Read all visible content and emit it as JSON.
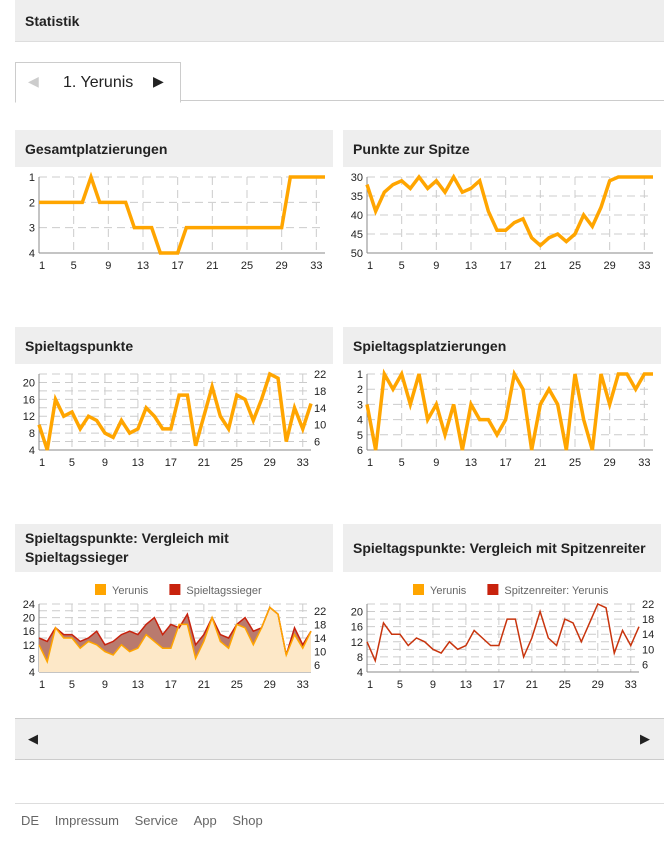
{
  "header": {
    "title": "Statistik"
  },
  "tab": {
    "label": "1. Yerunis",
    "prev": "◀",
    "next": "▶"
  },
  "pager": {
    "prev": "◀",
    "next": "▶"
  },
  "footer": {
    "links": [
      "DE",
      "Impressum",
      "Service",
      "App",
      "Shop"
    ]
  },
  "colors": {
    "orange": "#ffa500",
    "red": "#c8220d"
  },
  "chart_data": [
    {
      "id": "c1",
      "type": "line",
      "title": "Gesamtplatzierungen",
      "ylim": [
        1,
        4
      ],
      "yticks": [
        1,
        2,
        3,
        4
      ],
      "inverted": true,
      "xticks": [
        1,
        5,
        9,
        13,
        17,
        21,
        25,
        29,
        33
      ],
      "series": [
        {
          "name": "Yerunis",
          "values": [
            2,
            2,
            2,
            2,
            2,
            2,
            1,
            2,
            2,
            2,
            2,
            3,
            3,
            3,
            4,
            4,
            4,
            3,
            3,
            3,
            3,
            3,
            3,
            3,
            3,
            3,
            3,
            3,
            3,
            1,
            1,
            1,
            1,
            1
          ]
        }
      ]
    },
    {
      "id": "c2",
      "type": "line",
      "title": "Punkte zur Spitze",
      "ylim": [
        30,
        50
      ],
      "yticks": [
        30,
        35,
        40,
        45,
        50
      ],
      "inverted": true,
      "xticks": [
        1,
        5,
        9,
        13,
        17,
        21,
        25,
        29,
        33
      ],
      "series": [
        {
          "name": "Yerunis",
          "values": [
            32,
            39,
            34,
            32,
            31,
            33,
            30,
            33,
            31,
            34,
            30,
            34,
            33,
            31,
            39,
            44,
            44,
            42,
            41,
            46,
            48,
            46,
            45,
            47,
            45,
            40,
            43,
            38,
            31,
            30,
            30,
            30,
            30,
            30
          ]
        }
      ]
    },
    {
      "id": "c3",
      "type": "line",
      "title": "Spieltagspunkte",
      "ylim": [
        4,
        22
      ],
      "yticks": [
        4,
        6,
        8,
        10,
        12,
        14,
        16,
        18,
        20,
        22
      ],
      "inverted": false,
      "xticks": [
        1,
        5,
        9,
        13,
        17,
        21,
        25,
        29,
        33
      ],
      "series": [
        {
          "name": "Yerunis",
          "values": [
            10,
            4,
            16,
            12,
            13,
            9,
            12,
            11,
            8,
            7,
            11,
            8,
            9,
            14,
            12,
            9,
            9,
            17,
            17,
            5,
            12,
            19,
            12,
            9,
            17,
            16,
            11,
            16,
            22,
            21,
            6,
            14,
            9,
            15
          ]
        }
      ]
    },
    {
      "id": "c4",
      "type": "line",
      "title": "Spieltagsplatzierungen",
      "ylim": [
        1,
        6
      ],
      "yticks": [
        1,
        2,
        3,
        4,
        5,
        6
      ],
      "inverted": true,
      "xticks": [
        1,
        5,
        9,
        13,
        17,
        21,
        25,
        29,
        33
      ],
      "series": [
        {
          "name": "Yerunis",
          "values": [
            3,
            6,
            1,
            2,
            1,
            3,
            1,
            4,
            3,
            5,
            3,
            6,
            3,
            4,
            4,
            5,
            4,
            1,
            2,
            6,
            3,
            2,
            3,
            6,
            1,
            4,
            6,
            1,
            3,
            1,
            1,
            2,
            1,
            1
          ]
        }
      ]
    },
    {
      "id": "c5",
      "type": "area",
      "title": "Spieltagspunkte: Vergleich mit Spieltagssieger",
      "ylim": [
        4,
        24
      ],
      "yticks": [
        4,
        6,
        8,
        10,
        12,
        14,
        16,
        18,
        20,
        22,
        24
      ],
      "inverted": false,
      "xticks": [
        1,
        5,
        9,
        13,
        17,
        21,
        25,
        29,
        33
      ],
      "legend": [
        "Yerunis",
        "Spieltagssieger"
      ],
      "series": [
        {
          "name": "Yerunis",
          "values": [
            12,
            7,
            17,
            14,
            14,
            11,
            13,
            12,
            10,
            9,
            12,
            10,
            11,
            15,
            13,
            11,
            11,
            18,
            18,
            8,
            13,
            20,
            13,
            11,
            18,
            17,
            12,
            17,
            23,
            21,
            9,
            15,
            11,
            16
          ]
        },
        {
          "name": "Spieltagssieger",
          "values": [
            14,
            13,
            17,
            15,
            15,
            13,
            14,
            16,
            12,
            13,
            15,
            16,
            15,
            18,
            20,
            15,
            18,
            17,
            21,
            12,
            15,
            20,
            15,
            14,
            18,
            20,
            16,
            17,
            23,
            21,
            9,
            17,
            12,
            16
          ]
        }
      ]
    },
    {
      "id": "c6",
      "type": "line",
      "title": "Spieltagspunkte: Vergleich mit Spitzenreiter",
      "ylim": [
        4,
        22
      ],
      "yticks": [
        4,
        6,
        8,
        10,
        12,
        14,
        16,
        18,
        20,
        22
      ],
      "inverted": false,
      "xticks": [
        1,
        5,
        9,
        13,
        17,
        21,
        25,
        29,
        33
      ],
      "legend": [
        "Yerunis",
        "Spitzenreiter: Yerunis"
      ],
      "series": [
        {
          "name": "Spitzenreiter: Yerunis",
          "values": [
            12,
            7,
            17,
            14,
            14,
            11,
            13,
            12,
            10,
            9,
            12,
            10,
            11,
            15,
            13,
            11,
            11,
            18,
            18,
            8,
            13,
            20,
            13,
            11,
            18,
            17,
            12,
            17,
            22,
            21,
            9,
            15,
            11,
            16
          ]
        }
      ]
    }
  ]
}
